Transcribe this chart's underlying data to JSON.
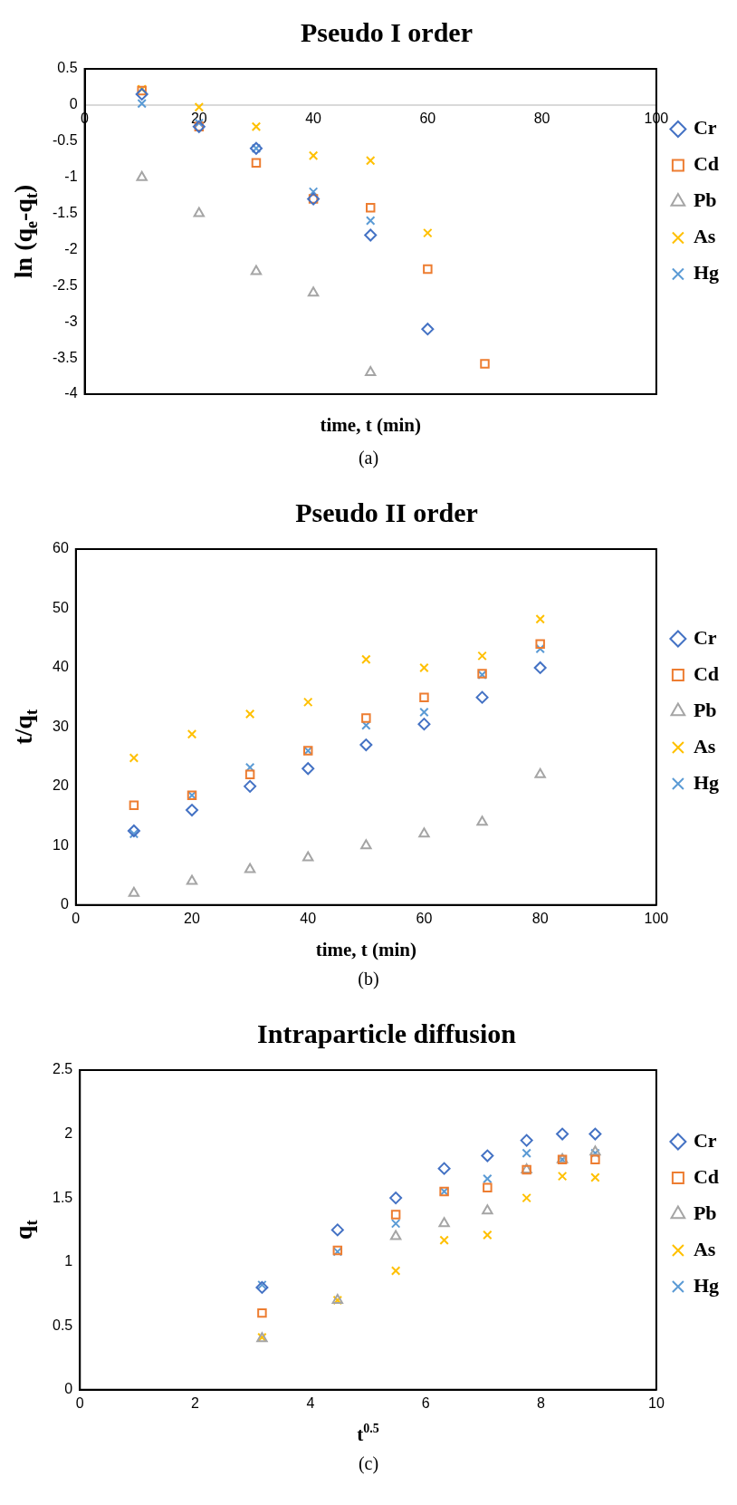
{
  "chart_data": [
    {
      "type": "scatter",
      "title": "Pseudo I order",
      "xlabel": "time, t (min)",
      "ylabel": "ln (q$_{e}$-q$_{t}$)",
      "annotations": [
        "(a)"
      ],
      "legend": "right",
      "xlim": [
        0,
        100
      ],
      "xticks": [
        0,
        20,
        40,
        60,
        80,
        100
      ],
      "ylim": [
        -4,
        0.5
      ],
      "yticks": [
        -4,
        -3.5,
        -3,
        -2.5,
        -2,
        -1.5,
        -1,
        -0.5,
        0,
        0.5
      ],
      "series": [
        {
          "name": "Cr",
          "color": "#4472c4",
          "marker": "diamond",
          "x": [
            10,
            20,
            30,
            40,
            50,
            60
          ],
          "values": [
            0.15,
            -0.3,
            -0.6,
            -1.3,
            -1.8,
            -3.1
          ]
        },
        {
          "name": "Cd",
          "color": "#ed7d31",
          "marker": "square",
          "x": [
            10,
            20,
            30,
            40,
            50,
            60,
            70
          ],
          "values": [
            0.2,
            -0.3,
            -0.8,
            -1.3,
            -1.42,
            -2.27,
            -3.58
          ]
        },
        {
          "name": "Pb",
          "color": "#a5a5a5",
          "marker": "triangle",
          "x": [
            10,
            20,
            30,
            40,
            50
          ],
          "values": [
            -1,
            -1.5,
            -2.3,
            -2.6,
            -3.7
          ]
        },
        {
          "name": "As",
          "color": "#ffc000",
          "marker": "cross",
          "x": [
            10,
            20,
            30,
            40,
            50,
            60
          ],
          "values": [
            0.22,
            -0.03,
            -0.3,
            -0.7,
            -0.77,
            -1.77
          ]
        },
        {
          "name": "Hg",
          "color": "#5b9bd5",
          "marker": "cross",
          "x": [
            10,
            20,
            30,
            40,
            50
          ],
          "values": [
            0.02,
            -0.25,
            -0.6,
            -1.2,
            -1.6
          ]
        }
      ]
    },
    {
      "type": "scatter",
      "title": "Pseudo II order",
      "xlabel": "time, t (min)",
      "ylabel": "t/q$_{t}$",
      "annotations": [
        "(b)"
      ],
      "legend": "right",
      "xlim": [
        0,
        100
      ],
      "xticks": [
        0,
        20,
        40,
        60,
        80,
        100
      ],
      "ylim": [
        0,
        60
      ],
      "yticks": [
        0,
        10,
        20,
        30,
        40,
        50,
        60
      ],
      "series": [
        {
          "name": "Cr",
          "color": "#4472c4",
          "marker": "diamond",
          "x": [
            10,
            20,
            30,
            40,
            50,
            60,
            70,
            80
          ],
          "values": [
            12.5,
            16,
            20,
            23,
            27,
            30.5,
            35,
            40
          ]
        },
        {
          "name": "Cd",
          "color": "#ed7d31",
          "marker": "square",
          "x": [
            10,
            20,
            30,
            40,
            50,
            60,
            70,
            80
          ],
          "values": [
            16.8,
            18.5,
            22,
            26,
            31.5,
            35,
            39,
            44
          ]
        },
        {
          "name": "Pb",
          "color": "#a5a5a5",
          "marker": "triangle",
          "x": [
            10,
            20,
            30,
            40,
            50,
            60,
            70,
            80
          ],
          "values": [
            2,
            4,
            6,
            8,
            10,
            12,
            14,
            22
          ]
        },
        {
          "name": "As",
          "color": "#ffc000",
          "marker": "cross",
          "x": [
            10,
            20,
            30,
            40,
            50,
            60,
            70,
            80
          ],
          "values": [
            24.8,
            28.8,
            32.2,
            34.2,
            41.4,
            40,
            42,
            48.2
          ]
        },
        {
          "name": "Hg",
          "color": "#5b9bd5",
          "marker": "cross",
          "x": [
            10,
            20,
            30,
            40,
            50,
            60,
            70,
            80
          ],
          "values": [
            12,
            18.5,
            23.2,
            26,
            30.3,
            32.5,
            38.8,
            43.2
          ]
        }
      ]
    },
    {
      "type": "scatter",
      "title": "Intraparticle diffusion",
      "xlabel": "t$^{0.5}$",
      "ylabel": "q$_{t}$",
      "annotations": [
        "(c)"
      ],
      "legend": "right",
      "xlim": [
        0,
        10
      ],
      "xticks": [
        0,
        2,
        4,
        6,
        8,
        10
      ],
      "ylim": [
        0,
        2.5
      ],
      "yticks": [
        0,
        0.5,
        1,
        1.5,
        2,
        2.5
      ],
      "series": [
        {
          "name": "Cr",
          "color": "#4472c4",
          "marker": "diamond",
          "x": [
            3.16,
            4.47,
            5.48,
            6.32,
            7.07,
            7.75,
            8.37,
            8.94
          ],
          "values": [
            0.8,
            1.25,
            1.5,
            1.73,
            1.83,
            1.95,
            2,
            2
          ]
        },
        {
          "name": "Cd",
          "color": "#ed7d31",
          "marker": "square",
          "x": [
            3.16,
            4.47,
            5.48,
            6.32,
            7.07,
            7.75,
            8.37,
            8.94
          ],
          "values": [
            0.6,
            1.09,
            1.37,
            1.55,
            1.58,
            1.72,
            1.8,
            1.8
          ]
        },
        {
          "name": "Pb",
          "color": "#a5a5a5",
          "marker": "triangle",
          "x": [
            3.16,
            4.47,
            5.48,
            6.32,
            7.07,
            7.75,
            8.37,
            8.94
          ],
          "values": [
            0.4,
            0.7,
            1.2,
            1.3,
            1.4,
            1.72,
            1.8,
            1.86
          ]
        },
        {
          "name": "As",
          "color": "#ffc000",
          "marker": "cross",
          "x": [
            3.16,
            4.47,
            5.48,
            6.32,
            7.07,
            7.75,
            8.37,
            8.94
          ],
          "values": [
            0.41,
            0.7,
            0.93,
            1.17,
            1.21,
            1.5,
            1.67,
            1.66
          ]
        },
        {
          "name": "Hg",
          "color": "#5b9bd5",
          "marker": "cross",
          "x": [
            3.16,
            4.47,
            5.48,
            6.32,
            7.07,
            7.75,
            8.37,
            8.94
          ],
          "values": [
            0.82,
            1.08,
            1.3,
            1.55,
            1.65,
            1.85,
            1.8,
            1.85
          ]
        }
      ]
    }
  ]
}
